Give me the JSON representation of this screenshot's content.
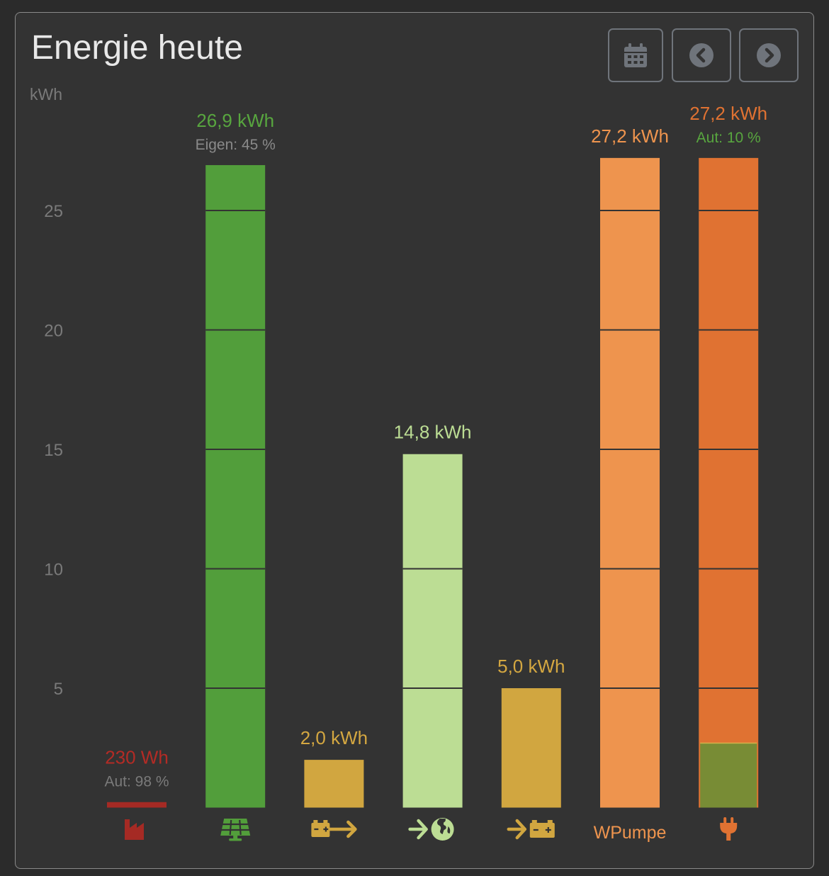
{
  "header": {
    "title": "Energie heute"
  },
  "buttons": {
    "calendar": "calendar-icon",
    "previous": "chevron-left-circle-icon",
    "next": "chevron-right-circle-icon"
  },
  "chart_data": {
    "type": "bar",
    "title": "Energie heute",
    "ylabel": "kWh",
    "ylim": [
      0,
      30
    ],
    "yticks": [
      5,
      10,
      15,
      20,
      25
    ],
    "grid": true,
    "bars": [
      {
        "name": "grid-consumption",
        "value": 0.23,
        "label": "230 Wh",
        "sublabel": "Aut: 98 %",
        "color": "#a52a24",
        "label_color": "#b32b25",
        "sublabel_color": "#7a7a7a",
        "icon": "factory-icon"
      },
      {
        "name": "solar",
        "value": 26.9,
        "label": "26,9 kWh",
        "sublabel": "Eigen: 45 %",
        "color": "#529e3b",
        "label_color": "#58a63f",
        "sublabel_color": "#8a8a8a",
        "icon": "solar-panel-icon"
      },
      {
        "name": "battery-discharge",
        "value": 2.0,
        "label": "2,0 kWh",
        "color": "#d1a640",
        "label_color": "#d4a741",
        "icon": "battery-out-icon"
      },
      {
        "name": "grid-export",
        "value": 14.8,
        "label": "14,8 kWh",
        "color": "#bcdd94",
        "label_color": "#bcdd94",
        "icon": "export-globe-icon"
      },
      {
        "name": "battery-charge",
        "value": 5.0,
        "label": "5,0 kWh",
        "color": "#d1a640",
        "label_color": "#d4a741",
        "icon": "battery-in-icon"
      },
      {
        "name": "heat-pump",
        "value": 27.2,
        "label": "27,2 kWh",
        "color": "#ee944e",
        "label_color": "#ee944e",
        "icon_text": "WPumpe"
      },
      {
        "name": "consumption",
        "value": 27.2,
        "label": "27,2 kWh",
        "sublabel": "Aut: 10 %",
        "color": "#e07232",
        "label_color": "#e07232",
        "sublabel_color": "#58a63f",
        "inner_value": 2.7,
        "inner_color": "#788c35",
        "icon": "plug-icon"
      }
    ]
  }
}
